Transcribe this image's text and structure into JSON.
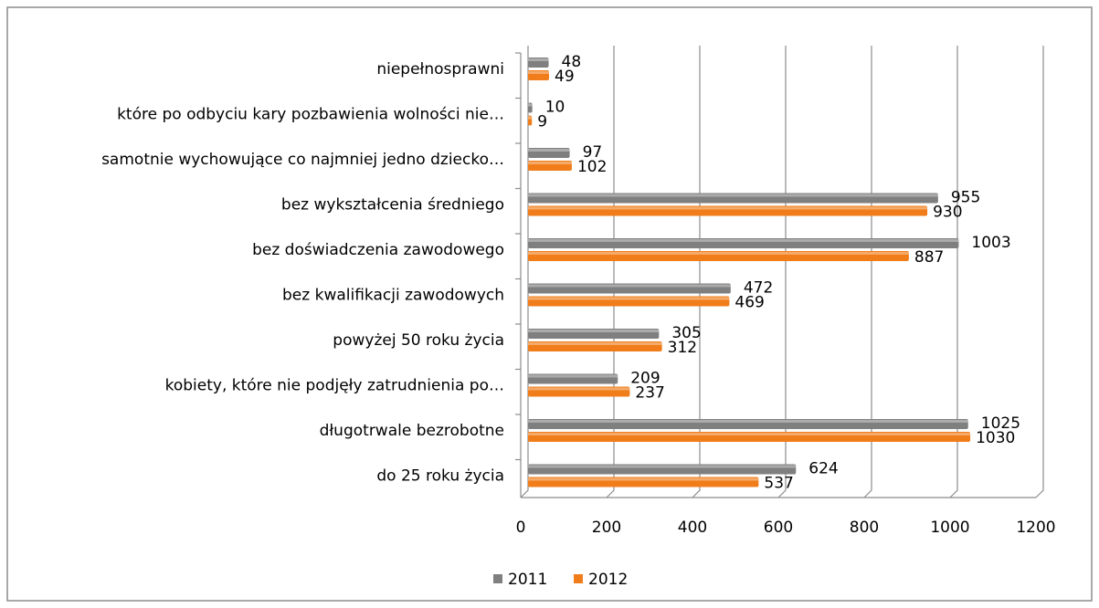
{
  "chart_data": {
    "type": "bar",
    "orientation": "horizontal",
    "categories": [
      "niepełnosprawni",
      "które po odbyciu kary pozbawienia wolności nie…",
      "samotnie wychowujące co najmniej jedno dziecko…",
      "bez wykształcenia średniego",
      "bez doświadczenia zawodowego",
      "bez kwalifikacji zawodowych",
      "powyżej 50 roku życia",
      "kobiety, które nie podjęły zatrudnienia po…",
      "długotrwale bezrobotne",
      "do 25 roku życia"
    ],
    "series": [
      {
        "name": "2011",
        "color": "#7f7f7f",
        "values": [
          48,
          10,
          97,
          955,
          1003,
          472,
          305,
          209,
          1025,
          624
        ]
      },
      {
        "name": "2012",
        "color": "#f07d1a",
        "values": [
          49,
          9,
          102,
          930,
          887,
          469,
          312,
          237,
          1030,
          537
        ]
      }
    ],
    "xlim": [
      0,
      1200
    ],
    "xticks": [
      0,
      200,
      400,
      600,
      800,
      1000,
      1200
    ],
    "grid": true,
    "legend": "bottom"
  }
}
